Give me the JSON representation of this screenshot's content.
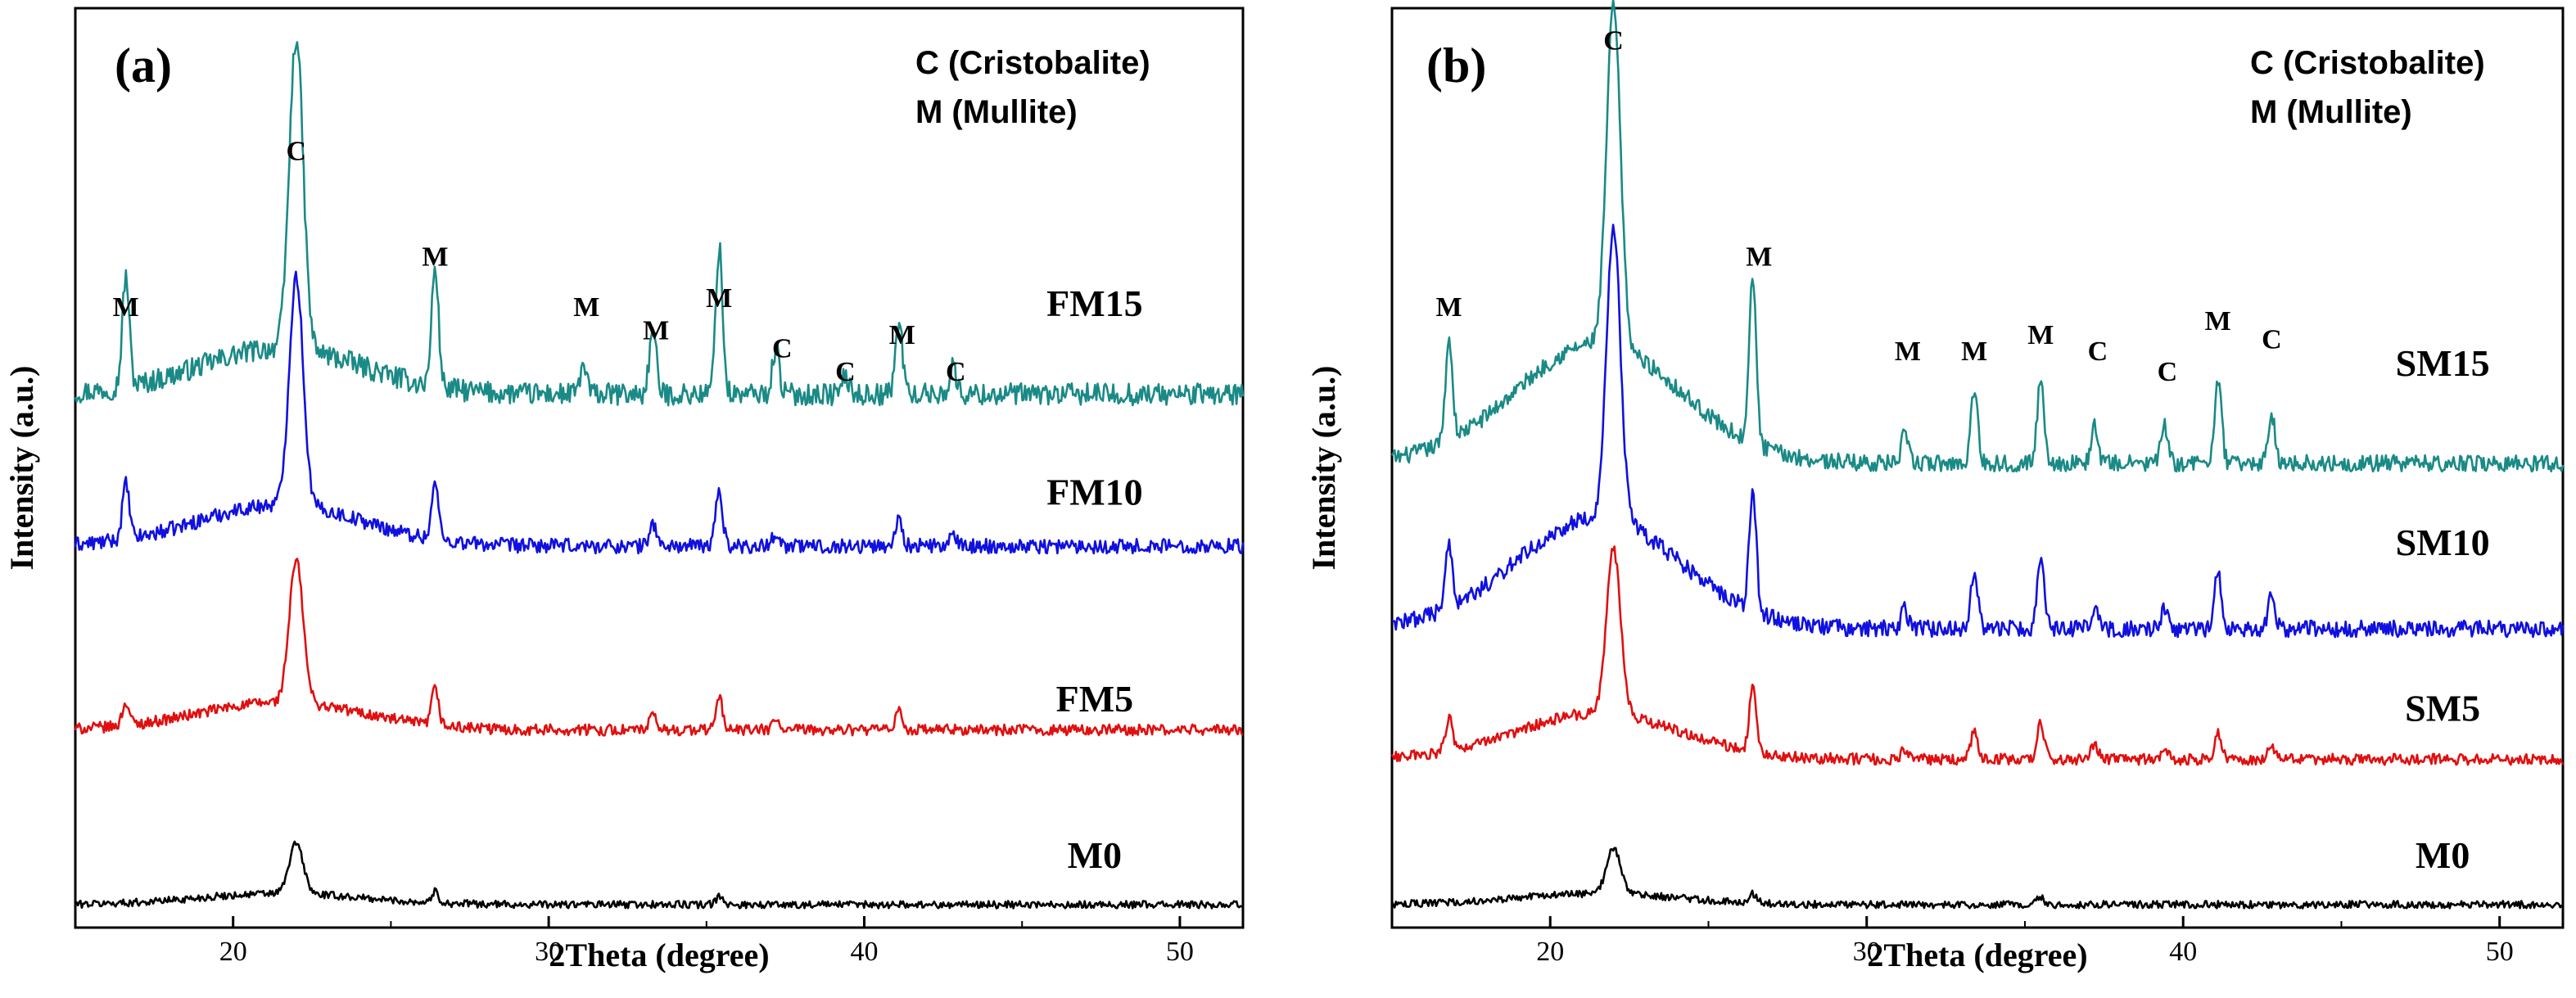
{
  "chart_data": [
    {
      "type": "line",
      "panel_label": "(a)",
      "xlabel": "2Theta (degree)",
      "ylabel": "Intensity (a.u.)",
      "xlim": [
        15,
        52
      ],
      "xticks": [
        20,
        30,
        40,
        50
      ],
      "legend": [
        "C (Cristobalite)",
        "M (Mullite)"
      ],
      "series": [
        {
          "name": "FM15",
          "color": "#1a8a86",
          "baseline": 0.58,
          "noise": 0.012,
          "hump": 0.05,
          "peaks": [
            [
              16.6,
              0.12
            ],
            [
              22.0,
              0.34
            ],
            [
              26.4,
              0.13
            ],
            [
              31.1,
              0.03
            ],
            [
              33.3,
              0.07
            ],
            [
              35.4,
              0.16
            ],
            [
              37.2,
              0.05
            ],
            [
              39.4,
              0.02
            ],
            [
              41.1,
              0.08
            ],
            [
              42.8,
              0.03
            ]
          ]
        },
        {
          "name": "FM10",
          "color": "#1010e0",
          "baseline": 0.415,
          "noise": 0.008,
          "hump": 0.045,
          "peaks": [
            [
              16.6,
              0.06
            ],
            [
              22.0,
              0.25
            ],
            [
              26.4,
              0.06
            ],
            [
              33.3,
              0.025
            ],
            [
              35.4,
              0.06
            ],
            [
              37.2,
              0.015
            ],
            [
              41.1,
              0.03
            ],
            [
              42.8,
              0.01
            ]
          ]
        },
        {
          "name": "FM5",
          "color": "#e01010",
          "baseline": 0.215,
          "noise": 0.006,
          "hump": 0.03,
          "peaks": [
            [
              16.6,
              0.025
            ],
            [
              22.0,
              0.155
            ],
            [
              26.4,
              0.04
            ],
            [
              33.3,
              0.015
            ],
            [
              35.4,
              0.035
            ],
            [
              37.2,
              0.01
            ],
            [
              41.1,
              0.02
            ]
          ]
        },
        {
          "name": "M0",
          "color": "#000000",
          "baseline": 0.025,
          "noise": 0.004,
          "hump": 0.012,
          "peaks": [
            [
              22.0,
              0.055
            ],
            [
              26.4,
              0.012
            ],
            [
              35.4,
              0.008
            ]
          ]
        }
      ],
      "peak_labels": [
        {
          "text": "M",
          "x": 16.6,
          "y": 0.665
        },
        {
          "text": "C",
          "x": 22.0,
          "y": 0.835
        },
        {
          "text": "M",
          "x": 26.4,
          "y": 0.72
        },
        {
          "text": "M",
          "x": 31.2,
          "y": 0.665
        },
        {
          "text": "M",
          "x": 33.4,
          "y": 0.64
        },
        {
          "text": "M",
          "x": 35.4,
          "y": 0.675
        },
        {
          "text": "C",
          "x": 37.4,
          "y": 0.62
        },
        {
          "text": "C",
          "x": 39.4,
          "y": 0.595
        },
        {
          "text": "M",
          "x": 41.2,
          "y": 0.635
        },
        {
          "text": "C",
          "x": 42.9,
          "y": 0.595
        }
      ],
      "series_labels": [
        {
          "text": "FM15",
          "x": 47.3,
          "y": 0.665
        },
        {
          "text": "FM10",
          "x": 47.3,
          "y": 0.46
        },
        {
          "text": "FM5",
          "x": 47.3,
          "y": 0.235
        },
        {
          "text": "M0",
          "x": 47.3,
          "y": 0.065
        }
      ]
    },
    {
      "type": "line",
      "panel_label": "(b)",
      "xlabel": "2Theta (degree)",
      "ylabel": "Intensity (a.u.)",
      "xlim": [
        15,
        52
      ],
      "xticks": [
        20,
        30,
        40,
        50
      ],
      "legend": [
        "C (Cristobalite)",
        "M (Mullite)"
      ],
      "series": [
        {
          "name": "SM15",
          "color": "#1a8a86",
          "baseline": 0.505,
          "noise": 0.009,
          "hump": 0.13,
          "peaks": [
            [
              16.8,
              0.11
            ],
            [
              22.0,
              0.37
            ],
            [
              26.4,
              0.18
            ],
            [
              31.2,
              0.03
            ],
            [
              33.4,
              0.08
            ],
            [
              35.5,
              0.09
            ],
            [
              37.2,
              0.04
            ],
            [
              39.4,
              0.04
            ],
            [
              41.1,
              0.09
            ],
            [
              42.8,
              0.05
            ]
          ]
        },
        {
          "name": "SM10",
          "color": "#1010e0",
          "baseline": 0.325,
          "noise": 0.009,
          "hump": 0.12,
          "peaks": [
            [
              16.8,
              0.07
            ],
            [
              22.0,
              0.32
            ],
            [
              26.4,
              0.13
            ],
            [
              31.2,
              0.02
            ],
            [
              33.4,
              0.06
            ],
            [
              35.5,
              0.08
            ],
            [
              37.2,
              0.025
            ],
            [
              39.4,
              0.02
            ],
            [
              41.1,
              0.06
            ],
            [
              42.8,
              0.035
            ]
          ]
        },
        {
          "name": "SM5",
          "color": "#e01010",
          "baseline": 0.183,
          "noise": 0.006,
          "hump": 0.05,
          "peaks": [
            [
              16.8,
              0.035
            ],
            [
              22.0,
              0.18
            ],
            [
              26.4,
              0.07
            ],
            [
              31.2,
              0.01
            ],
            [
              33.4,
              0.03
            ],
            [
              35.5,
              0.04
            ],
            [
              37.2,
              0.015
            ],
            [
              39.4,
              0.01
            ],
            [
              41.1,
              0.03
            ],
            [
              42.8,
              0.015
            ]
          ]
        },
        {
          "name": "M0",
          "color": "#000000",
          "baseline": 0.025,
          "noise": 0.004,
          "hump": 0.012,
          "peaks": [
            [
              22.0,
              0.05
            ],
            [
              26.4,
              0.01
            ],
            [
              35.5,
              0.008
            ]
          ]
        }
      ],
      "peak_labels": [
        {
          "text": "M",
          "x": 16.8,
          "y": 0.665
        },
        {
          "text": "C",
          "x": 22.0,
          "y": 0.955
        },
        {
          "text": "M",
          "x": 26.6,
          "y": 0.72
        },
        {
          "text": "M",
          "x": 31.3,
          "y": 0.617
        },
        {
          "text": "M",
          "x": 33.4,
          "y": 0.617
        },
        {
          "text": "M",
          "x": 35.5,
          "y": 0.635
        },
        {
          "text": "C",
          "x": 37.3,
          "y": 0.617
        },
        {
          "text": "C",
          "x": 39.5,
          "y": 0.595
        },
        {
          "text": "M",
          "x": 41.1,
          "y": 0.65
        },
        {
          "text": "C",
          "x": 42.8,
          "y": 0.63
        }
      ],
      "series_labels": [
        {
          "text": "SM15",
          "x": 48.2,
          "y": 0.6
        },
        {
          "text": "SM10",
          "x": 48.2,
          "y": 0.405
        },
        {
          "text": "SM5",
          "x": 48.2,
          "y": 0.225
        },
        {
          "text": "M0",
          "x": 48.2,
          "y": 0.065
        }
      ]
    }
  ]
}
